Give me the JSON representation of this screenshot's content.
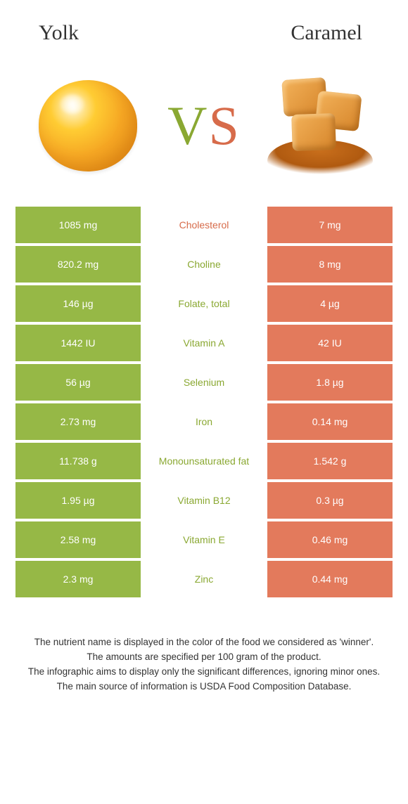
{
  "titles": {
    "left": "Yolk",
    "right": "Caramel"
  },
  "vs": {
    "v": "V",
    "s": "S"
  },
  "colors": {
    "green_bg": "#96b846",
    "orange_bg": "#e37a5c",
    "green_text": "#8aa832",
    "orange_text": "#d76b4a",
    "white": "#ffffff",
    "body_text": "#333333"
  },
  "rows": [
    {
      "left": "1085 mg",
      "label": "Cholesterol",
      "right": "7 mg",
      "winner": "orange"
    },
    {
      "left": "820.2 mg",
      "label": "Choline",
      "right": "8 mg",
      "winner": "green"
    },
    {
      "left": "146 µg",
      "label": "Folate, total",
      "right": "4 µg",
      "winner": "green"
    },
    {
      "left": "1442 IU",
      "label": "Vitamin A",
      "right": "42 IU",
      "winner": "green"
    },
    {
      "left": "56 µg",
      "label": "Selenium",
      "right": "1.8 µg",
      "winner": "green"
    },
    {
      "left": "2.73 mg",
      "label": "Iron",
      "right": "0.14 mg",
      "winner": "green"
    },
    {
      "left": "11.738 g",
      "label": "Monounsaturated fat",
      "right": "1.542 g",
      "winner": "green"
    },
    {
      "left": "1.95 µg",
      "label": "Vitamin B12",
      "right": "0.3 µg",
      "winner": "green"
    },
    {
      "left": "2.58 mg",
      "label": "Vitamin E",
      "right": "0.46 mg",
      "winner": "green"
    },
    {
      "left": "2.3 mg",
      "label": "Zinc",
      "right": "0.44 mg",
      "winner": "green"
    }
  ],
  "footnotes": [
    "The nutrient name is displayed in the color of the food we considered as 'winner'.",
    "The amounts are specified per 100 gram of the product.",
    "The infographic aims to display only the significant differences, ignoring minor ones.",
    "The main source of information is USDA Food Composition Database."
  ]
}
